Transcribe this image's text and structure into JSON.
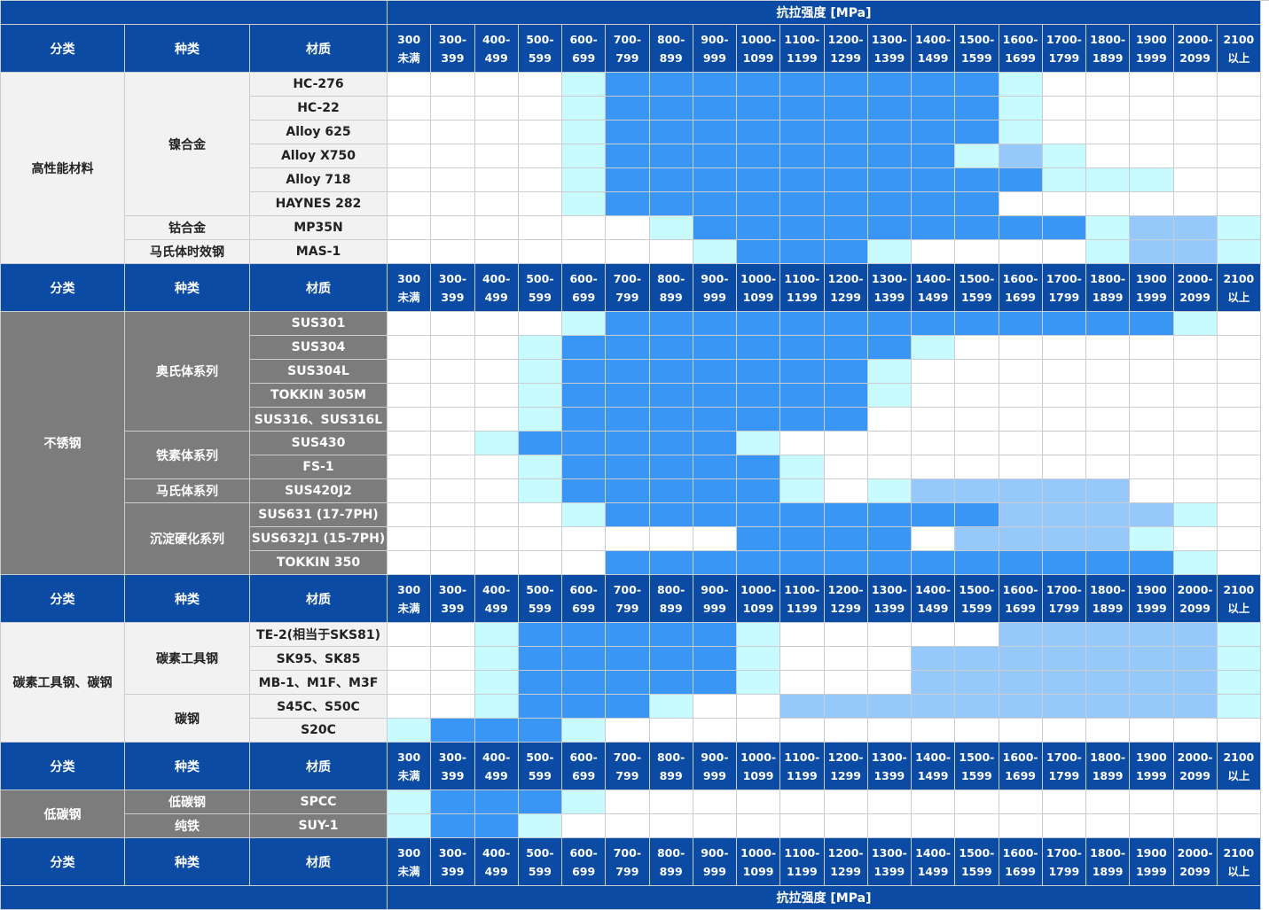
{
  "headers": {
    "category": "分类",
    "kind": "种类",
    "material": "材质",
    "axis_title": "抗拉强度 [MPa]",
    "ranges": [
      [
        "300",
        "未满"
      ],
      [
        "300-",
        "399"
      ],
      [
        "400-",
        "499"
      ],
      [
        "500-",
        "599"
      ],
      [
        "600-",
        "699"
      ],
      [
        "700-",
        "799"
      ],
      [
        "800-",
        "899"
      ],
      [
        "900-",
        "999"
      ],
      [
        "1000-",
        "1099"
      ],
      [
        "1100-",
        "1199"
      ],
      [
        "1200-",
        "1299"
      ],
      [
        "1300-",
        "1399"
      ],
      [
        "1400-",
        "1499"
      ],
      [
        "1500-",
        "1599"
      ],
      [
        "1600-",
        "1699"
      ],
      [
        "1700-",
        "1799"
      ],
      [
        "1800-",
        "1899"
      ],
      [
        "1900",
        "1999"
      ],
      [
        "2000-",
        "2099"
      ],
      [
        "2100",
        "以上"
      ]
    ]
  },
  "legend_colors": {
    "none": "#ffffff",
    "light": "#c8fbfd",
    "mid": "#97c8fb",
    "dark": "#3a96f4",
    "header": "#0b4ba3"
  },
  "sections": [
    {
      "category": "高性能材料",
      "style": "light",
      "groups": [
        {
          "kind": "镍合金",
          "materials": [
            {
              "name": "HC-276",
              "levels": [
                0,
                0,
                0,
                0,
                1,
                3,
                3,
                3,
                3,
                3,
                3,
                3,
                3,
                3,
                1,
                0,
                0,
                0,
                0,
                0
              ]
            },
            {
              "name": "HC-22",
              "levels": [
                0,
                0,
                0,
                0,
                1,
                3,
                3,
                3,
                3,
                3,
                3,
                3,
                3,
                3,
                1,
                0,
                0,
                0,
                0,
                0
              ]
            },
            {
              "name": "Alloy 625",
              "levels": [
                0,
                0,
                0,
                0,
                1,
                3,
                3,
                3,
                3,
                3,
                3,
                3,
                3,
                3,
                1,
                0,
                0,
                0,
                0,
                0
              ]
            },
            {
              "name": "Alloy X750",
              "levels": [
                0,
                0,
                0,
                0,
                1,
                3,
                3,
                3,
                3,
                3,
                3,
                3,
                3,
                1,
                2,
                1,
                0,
                0,
                0,
                0
              ]
            },
            {
              "name": "Alloy 718",
              "levels": [
                0,
                0,
                0,
                0,
                1,
                3,
                3,
                3,
                3,
                3,
                3,
                3,
                3,
                3,
                3,
                1,
                1,
                1,
                0,
                0
              ]
            },
            {
              "name": "HAYNES 282",
              "levels": [
                0,
                0,
                0,
                0,
                1,
                3,
                3,
                3,
                3,
                3,
                3,
                3,
                3,
                3,
                0,
                0,
                0,
                0,
                0,
                0
              ]
            }
          ]
        },
        {
          "kind": "钴合金",
          "materials": [
            {
              "name": "MP35N",
              "levels": [
                0,
                0,
                0,
                0,
                0,
                0,
                1,
                3,
                3,
                3,
                3,
                3,
                3,
                3,
                3,
                3,
                1,
                2,
                2,
                1
              ]
            }
          ]
        },
        {
          "kind": "马氏体时效钢",
          "materials": [
            {
              "name": "MAS-1",
              "levels": [
                0,
                0,
                0,
                0,
                0,
                0,
                0,
                1,
                3,
                3,
                3,
                1,
                0,
                0,
                0,
                0,
                1,
                2,
                2,
                1
              ]
            }
          ]
        }
      ]
    },
    {
      "category": "不锈钢",
      "style": "dark",
      "groups": [
        {
          "kind": "奥氏体系列",
          "materials": [
            {
              "name": "SUS301",
              "levels": [
                0,
                0,
                0,
                0,
                1,
                3,
                3,
                3,
                3,
                3,
                3,
                3,
                3,
                3,
                3,
                3,
                3,
                3,
                1,
                0
              ]
            },
            {
              "name": "SUS304",
              "levels": [
                0,
                0,
                0,
                1,
                3,
                3,
                3,
                3,
                3,
                3,
                3,
                3,
                1,
                0,
                0,
                0,
                0,
                0,
                0,
                0
              ]
            },
            {
              "name": "SUS304L",
              "levels": [
                0,
                0,
                0,
                1,
                3,
                3,
                3,
                3,
                3,
                3,
                3,
                1,
                0,
                0,
                0,
                0,
                0,
                0,
                0,
                0
              ]
            },
            {
              "name": "TOKKIN 305M",
              "levels": [
                0,
                0,
                0,
                1,
                3,
                3,
                3,
                3,
                3,
                3,
                3,
                1,
                0,
                0,
                0,
                0,
                0,
                0,
                0,
                0
              ]
            },
            {
              "name": "SUS316、SUS316L",
              "levels": [
                0,
                0,
                0,
                1,
                3,
                3,
                3,
                3,
                3,
                3,
                3,
                0,
                0,
                0,
                0,
                0,
                0,
                0,
                0,
                0
              ]
            }
          ]
        },
        {
          "kind": "铁素体系列",
          "materials": [
            {
              "name": "SUS430",
              "levels": [
                0,
                0,
                1,
                3,
                3,
                3,
                3,
                3,
                1,
                0,
                0,
                0,
                0,
                0,
                0,
                0,
                0,
                0,
                0,
                0
              ]
            },
            {
              "name": "FS-1",
              "levels": [
                0,
                0,
                0,
                1,
                3,
                3,
                3,
                3,
                3,
                1,
                0,
                0,
                0,
                0,
                0,
                0,
                0,
                0,
                0,
                0
              ]
            }
          ]
        },
        {
          "kind": "马氏体系列",
          "materials": [
            {
              "name": "SUS420J2",
              "levels": [
                0,
                0,
                0,
                1,
                3,
                3,
                3,
                3,
                3,
                1,
                0,
                1,
                2,
                2,
                2,
                2,
                2,
                0,
                0,
                0
              ]
            }
          ]
        },
        {
          "kind": "沉淀硬化系列",
          "materials": [
            {
              "name": "SUS631 (17-7PH)",
              "levels": [
                0,
                0,
                0,
                0,
                1,
                3,
                3,
                3,
                3,
                3,
                3,
                3,
                3,
                3,
                2,
                2,
                2,
                2,
                1,
                0
              ]
            },
            {
              "name": "SUS632J1 (15-7PH)",
              "levels": [
                0,
                0,
                0,
                0,
                0,
                0,
                0,
                0,
                3,
                3,
                3,
                3,
                0,
                2,
                2,
                2,
                2,
                1,
                0,
                0
              ]
            },
            {
              "name": "TOKKIN 350",
              "levels": [
                0,
                0,
                0,
                0,
                0,
                3,
                3,
                3,
                3,
                3,
                3,
                3,
                3,
                3,
                3,
                3,
                3,
                3,
                1,
                0
              ]
            }
          ]
        }
      ]
    },
    {
      "category": "碳素工具钢、碳钢",
      "style": "light",
      "groups": [
        {
          "kind": "碳素工具钢",
          "materials": [
            {
              "name": "TE-2(相当于SKS81)",
              "levels": [
                0,
                0,
                1,
                3,
                3,
                3,
                3,
                3,
                1,
                0,
                0,
                0,
                0,
                0,
                2,
                2,
                2,
                2,
                2,
                1
              ]
            },
            {
              "name": "SK95、SK85",
              "levels": [
                0,
                0,
                1,
                3,
                3,
                3,
                3,
                3,
                1,
                0,
                0,
                0,
                2,
                2,
                2,
                2,
                2,
                2,
                2,
                1
              ]
            },
            {
              "name": "MB-1、M1F、M3F",
              "levels": [
                0,
                0,
                1,
                3,
                3,
                3,
                3,
                3,
                1,
                0,
                0,
                0,
                2,
                2,
                2,
                2,
                2,
                2,
                2,
                1
              ]
            }
          ]
        },
        {
          "kind": "碳钢",
          "materials": [
            {
              "name": "S45C、S50C",
              "levels": [
                0,
                0,
                1,
                3,
                3,
                3,
                1,
                0,
                0,
                2,
                2,
                2,
                2,
                2,
                2,
                2,
                2,
                2,
                2,
                1
              ]
            },
            {
              "name": "S20C",
              "levels": [
                1,
                3,
                3,
                3,
                1,
                0,
                0,
                0,
                0,
                0,
                0,
                0,
                0,
                0,
                0,
                0,
                0,
                0,
                0,
                0
              ]
            }
          ]
        }
      ]
    },
    {
      "category": "低碳钢",
      "style": "dark",
      "groups": [
        {
          "kind": "低碳钢",
          "materials": [
            {
              "name": "SPCC",
              "levels": [
                1,
                3,
                3,
                3,
                1,
                0,
                0,
                0,
                0,
                0,
                0,
                0,
                0,
                0,
                0,
                0,
                0,
                0,
                0,
                0
              ]
            }
          ]
        },
        {
          "kind": "纯铁",
          "materials": [
            {
              "name": "SUY-1",
              "levels": [
                1,
                3,
                3,
                1,
                0,
                0,
                0,
                0,
                0,
                0,
                0,
                0,
                0,
                0,
                0,
                0,
                0,
                0,
                0,
                0
              ]
            }
          ]
        }
      ]
    }
  ],
  "header_after_sections": [
    0,
    1,
    2,
    3
  ]
}
